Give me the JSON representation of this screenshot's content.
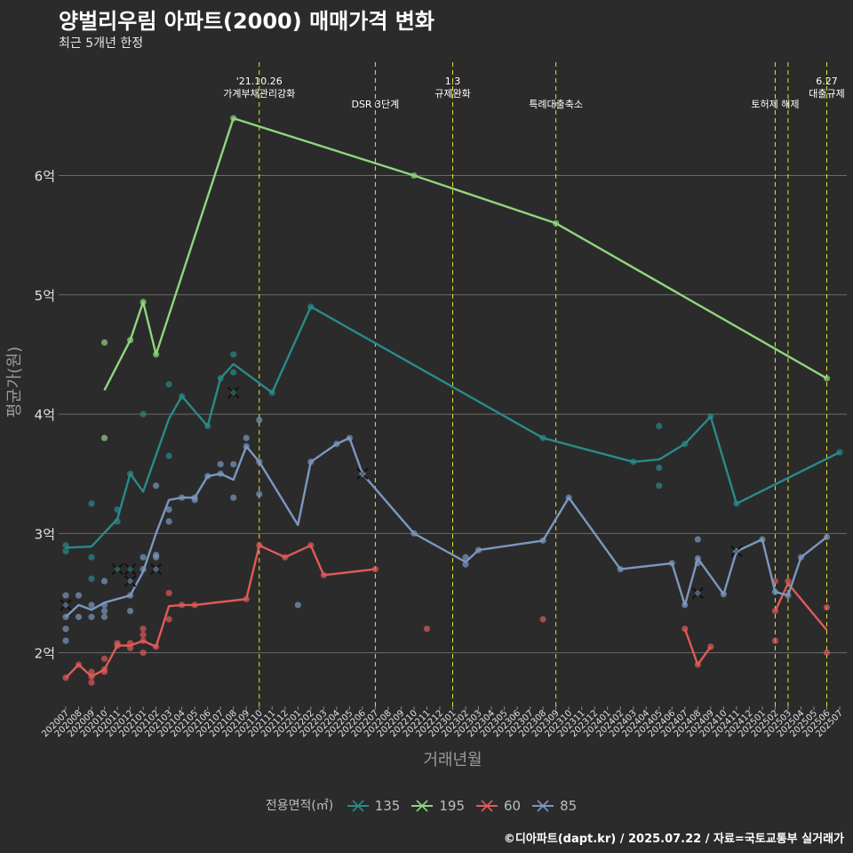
{
  "title": "양벌리우림 아파트(2000) 매매가격 변화",
  "subtitle": "최근 5개년 한정",
  "footer": "©디아파트(dapt.kr) / 2025.07.22 / 자료=국토교통부 실거래가",
  "chart_data": {
    "type": "line",
    "xlabel": "거래년월",
    "ylabel": "평균가(원)",
    "categories": [
      "202007",
      "202008",
      "202009",
      "202010",
      "202011",
      "202012",
      "202101",
      "202102",
      "202103",
      "202104",
      "202105",
      "202106",
      "202107",
      "202108",
      "202109",
      "202110",
      "202111",
      "202112",
      "202201",
      "202202",
      "202203",
      "202204",
      "202205",
      "202206",
      "202207",
      "202208",
      "202209",
      "202210",
      "202211",
      "202212",
      "202301",
      "202302",
      "202303",
      "202304",
      "202305",
      "202306",
      "202307",
      "202308",
      "202309",
      "202310",
      "202311",
      "202312",
      "202401",
      "202402",
      "202403",
      "202404",
      "202405",
      "202406",
      "202407",
      "202408",
      "202409",
      "202410",
      "202411",
      "202412",
      "202501",
      "202502",
      "202503",
      "202504",
      "202505",
      "202506",
      "202507"
    ],
    "yticks": [
      {
        "value": 2,
        "label": "2억"
      },
      {
        "value": 3,
        "label": "3억"
      },
      {
        "value": 4,
        "label": "4억"
      },
      {
        "value": 5,
        "label": "5억"
      },
      {
        "value": 6,
        "label": "6억"
      }
    ],
    "ylim": [
      1.55,
      6.95
    ],
    "grid": "horizontal",
    "legend": {
      "title": "전용면적(㎡)",
      "position": "bottom"
    },
    "series": [
      {
        "name": "135",
        "color": "#2a8a8a",
        "line": [
          [
            "202007",
            2.88
          ],
          [
            "202009",
            2.89
          ],
          [
            "202011",
            3.12
          ],
          [
            "202012",
            3.5
          ],
          [
            "202101",
            3.35
          ],
          [
            "202103",
            3.96
          ],
          [
            "202104",
            4.15
          ],
          [
            "202106",
            3.9
          ],
          [
            "202107",
            4.3
          ],
          [
            "202108",
            4.42
          ],
          [
            "202111",
            4.18
          ],
          [
            "202202",
            4.9
          ],
          [
            "202308",
            3.8
          ],
          [
            "202403",
            3.6
          ],
          [
            "202405",
            3.62
          ],
          [
            "202407",
            3.75
          ],
          [
            "202409",
            3.98
          ],
          [
            "202411",
            3.25
          ],
          [
            "202507",
            3.68
          ]
        ],
        "points": [
          [
            "202007",
            2.85
          ],
          [
            "202007",
            2.9
          ],
          [
            "202009",
            3.25
          ],
          [
            "202009",
            2.8
          ],
          [
            "202009",
            2.62
          ],
          [
            "202011",
            3.2
          ],
          [
            "202011",
            3.1
          ],
          [
            "202012",
            3.5
          ],
          [
            "202101",
            4.0
          ],
          [
            "202103",
            4.25
          ],
          [
            "202103",
            3.65
          ],
          [
            "202104",
            4.15
          ],
          [
            "202106",
            3.9
          ],
          [
            "202107",
            4.3
          ],
          [
            "202108",
            4.35
          ],
          [
            "202108",
            4.5
          ],
          [
            "202111",
            4.18
          ],
          [
            "202202",
            4.9
          ],
          [
            "202308",
            3.8
          ],
          [
            "202403",
            3.6
          ],
          [
            "202405",
            3.9
          ],
          [
            "202405",
            3.55
          ],
          [
            "202405",
            3.4
          ],
          [
            "202407",
            3.75
          ],
          [
            "202409",
            3.98
          ],
          [
            "202411",
            3.25
          ],
          [
            "202507",
            3.68
          ]
        ],
        "cancelled": [
          [
            "202011",
            2.7
          ],
          [
            "202012",
            2.7
          ],
          [
            "202108",
            4.18
          ]
        ]
      },
      {
        "name": "195",
        "color": "#8fd67e",
        "line": [
          [
            "202010",
            4.2
          ],
          [
            "202012",
            4.62
          ],
          [
            "202101",
            4.94
          ],
          [
            "202102",
            4.5
          ],
          [
            "202108",
            6.48
          ],
          [
            "202210",
            6.0
          ],
          [
            "202309",
            5.6
          ],
          [
            "202506",
            4.3
          ]
        ],
        "points": [
          [
            "202010",
            4.6
          ],
          [
            "202010",
            3.8
          ],
          [
            "202012",
            4.62
          ],
          [
            "202101",
            4.94
          ],
          [
            "202102",
            4.5
          ],
          [
            "202108",
            6.48
          ],
          [
            "202210",
            6.0
          ],
          [
            "202309",
            5.6
          ],
          [
            "202506",
            4.3
          ]
        ],
        "cancelled": []
      },
      {
        "name": "60",
        "color": "#e05a5a",
        "line": [
          [
            "202007",
            1.79
          ],
          [
            "202008",
            1.9
          ],
          [
            "202009",
            1.8
          ],
          [
            "202010",
            1.86
          ],
          [
            "202011",
            2.06
          ],
          [
            "202012",
            2.06
          ],
          [
            "202101",
            2.1
          ],
          [
            "202102",
            2.05
          ],
          [
            "202103",
            2.39
          ],
          [
            "202104",
            2.4
          ],
          [
            "202105",
            2.4
          ],
          [
            "202109",
            2.45
          ],
          [
            "202110",
            2.9
          ],
          [
            "202112",
            2.8
          ],
          [
            "202202",
            2.9
          ],
          [
            "202203",
            2.65
          ],
          [
            "202207",
            2.7
          ]
        ],
        "points": [
          [
            "202007",
            1.79
          ],
          [
            "202008",
            1.9
          ],
          [
            "202009",
            1.75
          ],
          [
            "202009",
            1.84
          ],
          [
            "202009",
            1.8
          ],
          [
            "202010",
            1.95
          ],
          [
            "202010",
            1.86
          ],
          [
            "202010",
            1.84
          ],
          [
            "202011",
            2.06
          ],
          [
            "202011",
            2.08
          ],
          [
            "202012",
            2.04
          ],
          [
            "202012",
            2.08
          ],
          [
            "202101",
            2.1
          ],
          [
            "202101",
            2.15
          ],
          [
            "202101",
            2.2
          ],
          [
            "202101",
            2.0
          ],
          [
            "202102",
            2.05
          ],
          [
            "202103",
            2.5
          ],
          [
            "202103",
            2.28
          ],
          [
            "202104",
            2.4
          ],
          [
            "202105",
            2.4
          ],
          [
            "202109",
            2.45
          ],
          [
            "202110",
            2.9
          ],
          [
            "202112",
            2.8
          ],
          [
            "202202",
            2.9
          ],
          [
            "202203",
            2.65
          ],
          [
            "202207",
            2.7
          ],
          [
            "202211",
            2.2
          ],
          [
            "202308",
            2.28
          ],
          [
            "202407",
            2.2
          ],
          [
            "202408",
            1.9
          ],
          [
            "202409",
            2.05
          ],
          [
            "202502",
            2.35
          ],
          [
            "202502",
            2.6
          ],
          [
            "202502",
            2.1
          ],
          [
            "202503",
            2.6
          ],
          [
            "202506",
            2.38
          ],
          [
            "202506",
            2.0
          ]
        ],
        "extra_line": [
          [
            "202407",
            2.2
          ],
          [
            "202408",
            1.9
          ],
          [
            "202409",
            2.05
          ]
        ],
        "extra_line2": [
          [
            "202502",
            2.35
          ],
          [
            "202503",
            2.58
          ],
          [
            "202506",
            2.19
          ]
        ],
        "cancelled": []
      },
      {
        "name": "85",
        "color": "#7b98c0",
        "line": [
          [
            "202007",
            2.3
          ],
          [
            "202008",
            2.4
          ],
          [
            "202009",
            2.36
          ],
          [
            "202010",
            2.42
          ],
          [
            "202012",
            2.48
          ],
          [
            "202101",
            2.68
          ],
          [
            "202102",
            3.0
          ],
          [
            "202103",
            3.28
          ],
          [
            "202104",
            3.3
          ],
          [
            "202105",
            3.3
          ],
          [
            "202106",
            3.48
          ],
          [
            "202107",
            3.5
          ],
          [
            "202108",
            3.45
          ],
          [
            "202109",
            3.73
          ],
          [
            "202110",
            3.6
          ],
          [
            "202201",
            3.07
          ],
          [
            "202202",
            3.6
          ],
          [
            "202204",
            3.75
          ],
          [
            "202205",
            3.8
          ],
          [
            "202206",
            3.5
          ],
          [
            "202210",
            3.0
          ],
          [
            "202302",
            2.76
          ],
          [
            "202303",
            2.86
          ],
          [
            "202308",
            2.94
          ],
          [
            "202310",
            3.3
          ],
          [
            "202402",
            2.7
          ],
          [
            "202406",
            2.75
          ],
          [
            "202407",
            2.4
          ],
          [
            "202408",
            2.79
          ],
          [
            "202410",
            2.49
          ],
          [
            "202411",
            2.85
          ],
          [
            "202501",
            2.95
          ],
          [
            "202502",
            2.51
          ],
          [
            "202503",
            2.48
          ],
          [
            "202504",
            2.8
          ],
          [
            "202506",
            2.97
          ]
        ],
        "points": [
          [
            "202007",
            2.48
          ],
          [
            "202007",
            2.3
          ],
          [
            "202007",
            2.2
          ],
          [
            "202007",
            2.1
          ],
          [
            "202008",
            2.48
          ],
          [
            "202008",
            2.3
          ],
          [
            "202009",
            2.4
          ],
          [
            "202009",
            2.3
          ],
          [
            "202010",
            2.6
          ],
          [
            "202010",
            2.4
          ],
          [
            "202010",
            2.35
          ],
          [
            "202010",
            2.3
          ],
          [
            "202012",
            2.48
          ],
          [
            "202012",
            2.35
          ],
          [
            "202101",
            2.8
          ],
          [
            "202101",
            2.7
          ],
          [
            "202102",
            3.4
          ],
          [
            "202102",
            2.82
          ],
          [
            "202102",
            2.8
          ],
          [
            "202103",
            3.2
          ],
          [
            "202103",
            3.1
          ],
          [
            "202104",
            3.3
          ],
          [
            "202105",
            3.3
          ],
          [
            "202105",
            3.28
          ],
          [
            "202106",
            3.48
          ],
          [
            "202107",
            3.58
          ],
          [
            "202107",
            3.5
          ],
          [
            "202108",
            3.58
          ],
          [
            "202108",
            3.3
          ],
          [
            "202109",
            3.8
          ],
          [
            "202109",
            3.73
          ],
          [
            "202110",
            3.95
          ],
          [
            "202110",
            3.6
          ],
          [
            "202110",
            3.33
          ],
          [
            "202201",
            2.4
          ],
          [
            "202202",
            3.6
          ],
          [
            "202204",
            3.75
          ],
          [
            "202205",
            3.8
          ],
          [
            "202206",
            3.5
          ],
          [
            "202210",
            3.0
          ],
          [
            "202302",
            2.8
          ],
          [
            "202302",
            2.74
          ],
          [
            "202303",
            2.86
          ],
          [
            "202308",
            2.94
          ],
          [
            "202310",
            3.3
          ],
          [
            "202402",
            2.7
          ],
          [
            "202406",
            2.75
          ],
          [
            "202407",
            2.4
          ],
          [
            "202408",
            2.95
          ],
          [
            "202408",
            2.79
          ],
          [
            "202408",
            2.75
          ],
          [
            "202410",
            2.49
          ],
          [
            "202411",
            2.85
          ],
          [
            "202501",
            2.95
          ],
          [
            "202502",
            2.51
          ],
          [
            "202503",
            2.48
          ],
          [
            "202504",
            2.8
          ],
          [
            "202506",
            2.97
          ]
        ],
        "cancelled": [
          [
            "202007",
            2.4
          ],
          [
            "202102",
            2.7
          ],
          [
            "202012",
            2.6
          ],
          [
            "202206",
            3.5
          ],
          [
            "202408",
            2.5
          ],
          [
            "202411",
            2.85
          ]
        ]
      }
    ],
    "events": [
      {
        "x": "202110",
        "label": "'21.10.26\n가계부채관리강화"
      },
      {
        "x": "202207",
        "label": "DSR 3단계"
      },
      {
        "x": "202301",
        "label": "1.3\n규제완화"
      },
      {
        "x": "202309",
        "label": "특례대출축소"
      },
      {
        "x": "202502",
        "label": "토허제 해제"
      },
      {
        "x": "202503",
        "label": ""
      },
      {
        "x": "202506",
        "label": "6.27\n대출규제"
      }
    ]
  }
}
